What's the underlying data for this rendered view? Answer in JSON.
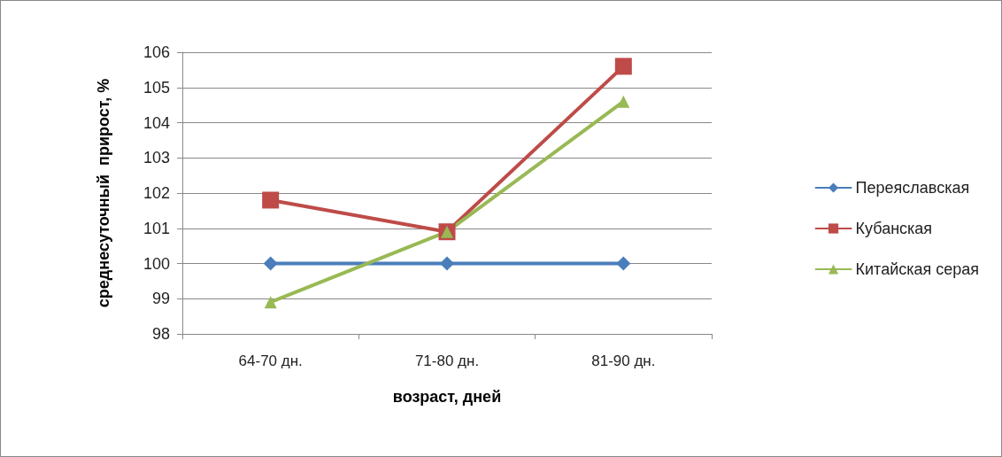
{
  "chart_data": {
    "type": "line",
    "xlabel": "возраст, дней",
    "ylabel": "среднесуточный  прирост, %",
    "categories": [
      "64-70 дн.",
      "71-80 дн.",
      "81-90 дн."
    ],
    "series": [
      {
        "name": "Переяславская",
        "color": "#4a7ebb",
        "marker": "diamond",
        "values": [
          100,
          100,
          100
        ]
      },
      {
        "name": "Кубанская",
        "color": "#be4b48",
        "marker": "square",
        "values": [
          101.8,
          100.9,
          105.6
        ]
      },
      {
        "name": "Китайская серая",
        "color": "#98b954",
        "marker": "triangle",
        "values": [
          98.9,
          100.9,
          104.6
        ]
      }
    ],
    "ylim": [
      98,
      106
    ],
    "yticks": [
      98,
      99,
      100,
      101,
      102,
      103,
      104,
      105,
      106
    ],
    "grid": "y",
    "legend": "right",
    "line_style": "solid"
  }
}
